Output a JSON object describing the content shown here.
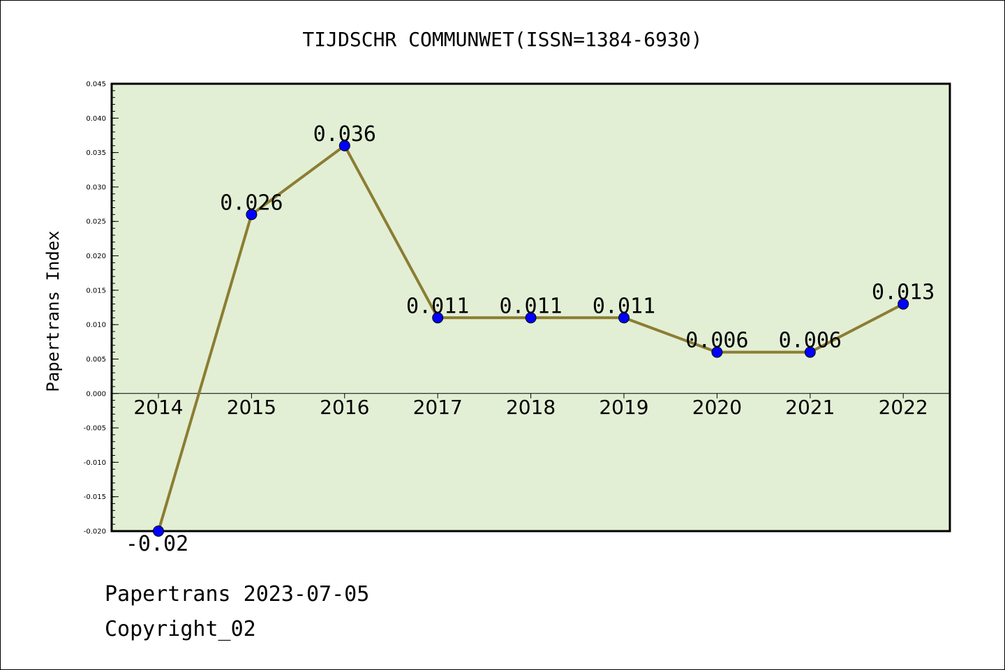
{
  "chart_data": {
    "type": "line",
    "title": "TIJDSCHR COMMUNWET(ISSN=1384-6930)",
    "xlabel": "",
    "ylabel": "Papertrans Index",
    "categories": [
      "2014",
      "2015",
      "2016",
      "2017",
      "2018",
      "2019",
      "2020",
      "2021",
      "2022"
    ],
    "series": [
      {
        "values": [
          -0.02,
          0.026,
          0.036,
          0.011,
          0.011,
          0.011,
          0.006,
          0.006,
          0.013
        ]
      }
    ],
    "data_labels": [
      "-0.02",
      "0.026",
      "0.036",
      "0.011",
      "0.011",
      "0.011",
      "0.006",
      "0.006",
      "0.013"
    ],
    "ylim": [
      -0.02,
      0.045
    ],
    "yticks": [
      "-0.020",
      "-0.015",
      "-0.010",
      "-0.005",
      "0.000",
      "0.005",
      "0.010",
      "0.015",
      "0.020",
      "0.025",
      "0.030",
      "0.035",
      "0.040",
      "0.045"
    ],
    "grid": false,
    "legend": "none",
    "colors": {
      "plot_background": "#e2efd5",
      "line": "#8b7d32",
      "marker": "#0000ff",
      "axes": "#000000"
    }
  },
  "footer": {
    "line1": "Papertrans 2023-07-05",
    "line2": "Copyright_02"
  }
}
